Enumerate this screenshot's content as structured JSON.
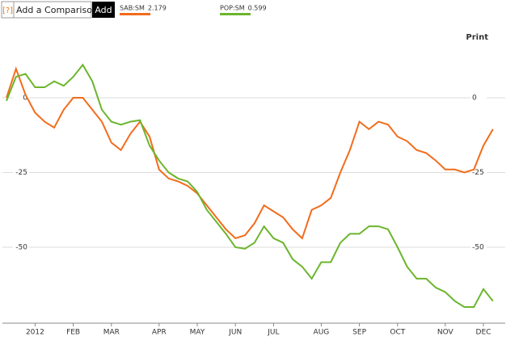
{
  "header": {
    "help": "[?]",
    "compare_label": "Add a Comparison",
    "add_button": "Add",
    "print": "Print"
  },
  "chart_data": {
    "type": "line",
    "categories": [
      null,
      null,
      null,
      "2012",
      null,
      null,
      null,
      "FEB",
      null,
      null,
      null,
      "MAR",
      null,
      null,
      null,
      null,
      "APR",
      null,
      null,
      null,
      "MAY",
      null,
      null,
      null,
      "JUN",
      null,
      null,
      null,
      "JUL",
      null,
      null,
      null,
      null,
      "AUG",
      null,
      null,
      null,
      "SEP",
      null,
      null,
      null,
      "OCT",
      null,
      null,
      null,
      null,
      "NOV",
      null,
      null,
      null,
      "DEC",
      null
    ],
    "series": [
      {
        "name": "SAB:SM",
        "last": "2.179",
        "color": "#f26c1c",
        "values": [
          0,
          9.7,
          1,
          -5,
          -8,
          -10,
          -4,
          0,
          0,
          -4,
          -8,
          -15,
          -17.5,
          -12,
          -8,
          -13,
          -24,
          -27,
          -28,
          -29.5,
          -32,
          -36,
          -40,
          -44,
          -47,
          -46,
          -42,
          -36,
          -38,
          -40,
          -44,
          -47,
          -37.5,
          -36,
          -33.5,
          -25,
          -17.5,
          -8,
          -10.5,
          -8,
          -9,
          -13,
          -14.5,
          -17.5,
          -18.5,
          -21,
          -24,
          -24,
          -25,
          -24,
          -16,
          -10.5
        ]
      },
      {
        "name": "POP:SM",
        "last": "0.599",
        "color": "#6cb52d",
        "values": [
          -1,
          7,
          8,
          3.5,
          3.5,
          5.5,
          4,
          7,
          11,
          5.5,
          -4,
          -8,
          -9,
          -8,
          -7.5,
          -16,
          -21,
          -25,
          -27,
          -28,
          -31.5,
          -37.5,
          -41.5,
          -45.5,
          -50,
          -50.5,
          -48.5,
          -43,
          -47,
          -48.5,
          -54,
          -56.5,
          -60.5,
          -55,
          -55,
          -48.5,
          -45.5,
          -45.5,
          -43,
          -43,
          -44,
          -50,
          -56.5,
          -60.5,
          -60.5,
          -63.5,
          -65,
          -68,
          -70,
          -70,
          -64,
          -68
        ]
      }
    ],
    "ylim": [
      -75,
      25
    ],
    "yticks": [
      0,
      -25,
      -50
    ],
    "grid": true
  }
}
